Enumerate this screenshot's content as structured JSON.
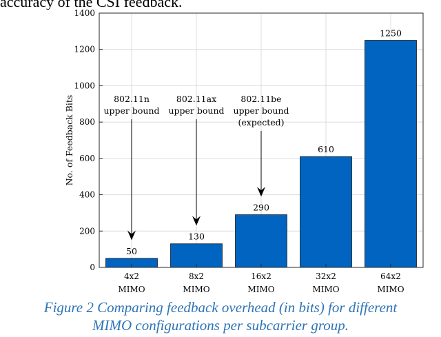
{
  "page_header": "accuracy of the CSI feedback.",
  "chart_data": {
    "type": "bar",
    "categories": [
      [
        "4x2",
        "MIMO"
      ],
      [
        "8x2",
        "MIMO"
      ],
      [
        "16x2",
        "MIMO"
      ],
      [
        "32x2",
        "MIMO"
      ],
      [
        "64x2",
        "MIMO"
      ]
    ],
    "values": [
      50,
      130,
      290,
      610,
      1250
    ],
    "value_labels": [
      "50",
      "130",
      "290",
      "610",
      "1250"
    ],
    "title": "",
    "xlabel": "",
    "ylabel": "No. of Feedback Bits",
    "ylim": [
      0,
      1400
    ],
    "yticks": [
      0,
      200,
      400,
      600,
      800,
      1000,
      1200,
      1400
    ],
    "grid": true,
    "bar_color": "#0064c0",
    "annotations": [
      {
        "category_index": 0,
        "lines": [
          "802.11n",
          "upper bound"
        ],
        "arrow_tip_value": 150
      },
      {
        "category_index": 1,
        "lines": [
          "802.11ax",
          "upper bound"
        ],
        "arrow_tip_value": 230
      },
      {
        "category_index": 2,
        "lines": [
          "802.11be",
          "upper bound",
          "(expected)"
        ],
        "arrow_tip_value": 390
      }
    ]
  },
  "caption": {
    "line1": "Figure 2 Comparing feedback overhead (in bits) for different",
    "line2": "MIMO configurations per subcarrier group."
  }
}
